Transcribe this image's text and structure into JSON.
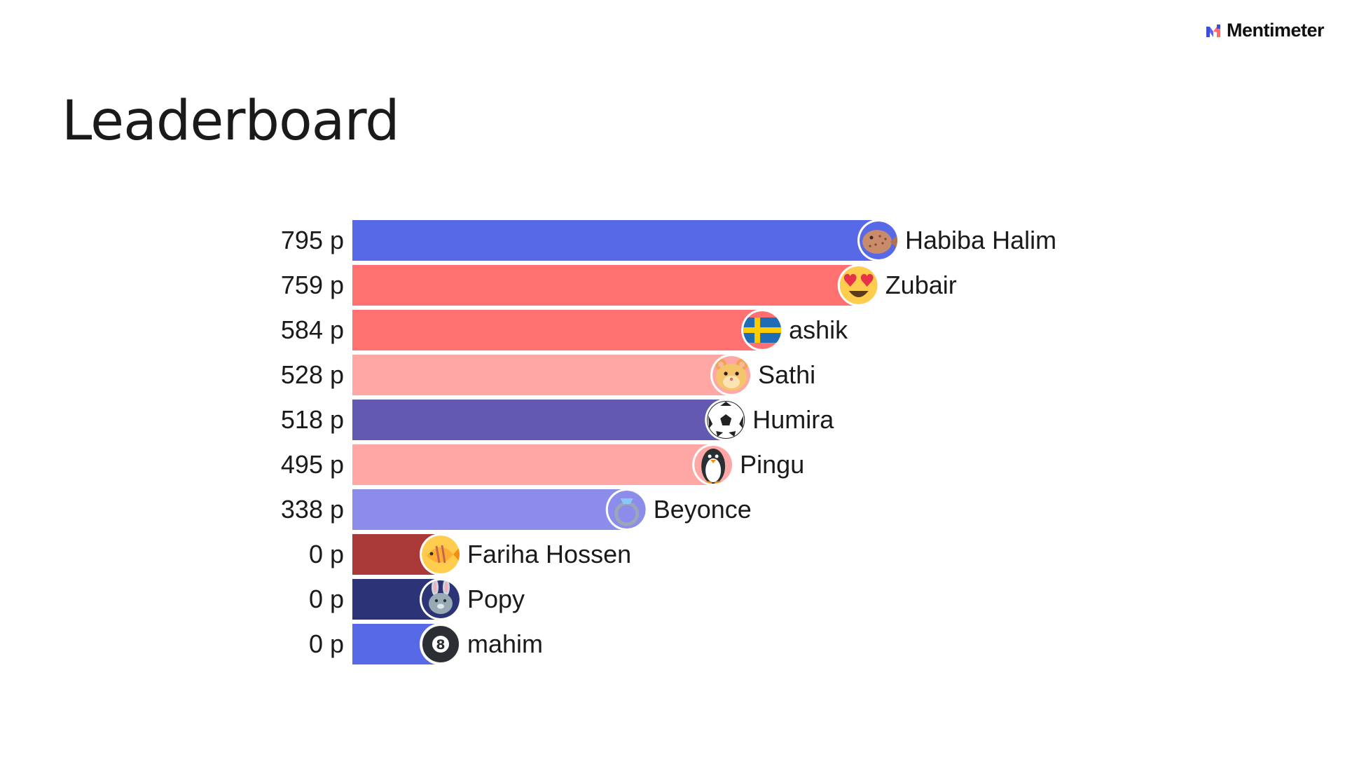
{
  "brand": {
    "name": "Mentimeter"
  },
  "page": {
    "title": "Leaderboard"
  },
  "chart_data": {
    "type": "bar",
    "orientation": "horizontal",
    "title": "Leaderboard",
    "xlabel": "",
    "ylabel": "",
    "value_suffix": " p",
    "grid": false,
    "entries": [
      {
        "name": "Habiba Halim",
        "value": 795,
        "icon": "pufferfish-icon",
        "color": "#5769e7"
      },
      {
        "name": "Zubair",
        "value": 759,
        "icon": "heart-eyes-icon",
        "color": "#ff7171"
      },
      {
        "name": "ashik",
        "value": 584,
        "icon": "sweden-flag-icon",
        "color": "#ff7171"
      },
      {
        "name": "Sathi",
        "value": 528,
        "icon": "hamster-icon",
        "color": "#ffa7a5"
      },
      {
        "name": "Humira",
        "value": 518,
        "icon": "soccer-ball-icon",
        "color": "#625ab1"
      },
      {
        "name": "Pingu",
        "value": 495,
        "icon": "penguin-icon",
        "color": "#ffa7a5"
      },
      {
        "name": "Beyonce",
        "value": 338,
        "icon": "ring-icon",
        "color": "#8c8ceb"
      },
      {
        "name": "Fariha Hossen",
        "value": 0,
        "icon": "tropical-fish-icon",
        "color": "#a93939"
      },
      {
        "name": "Popy",
        "value": 0,
        "icon": "rabbit-icon",
        "color": "#2c3477"
      },
      {
        "name": "mahim",
        "value": 0,
        "icon": "eight-ball-icon",
        "color": "#5769e7"
      }
    ]
  }
}
